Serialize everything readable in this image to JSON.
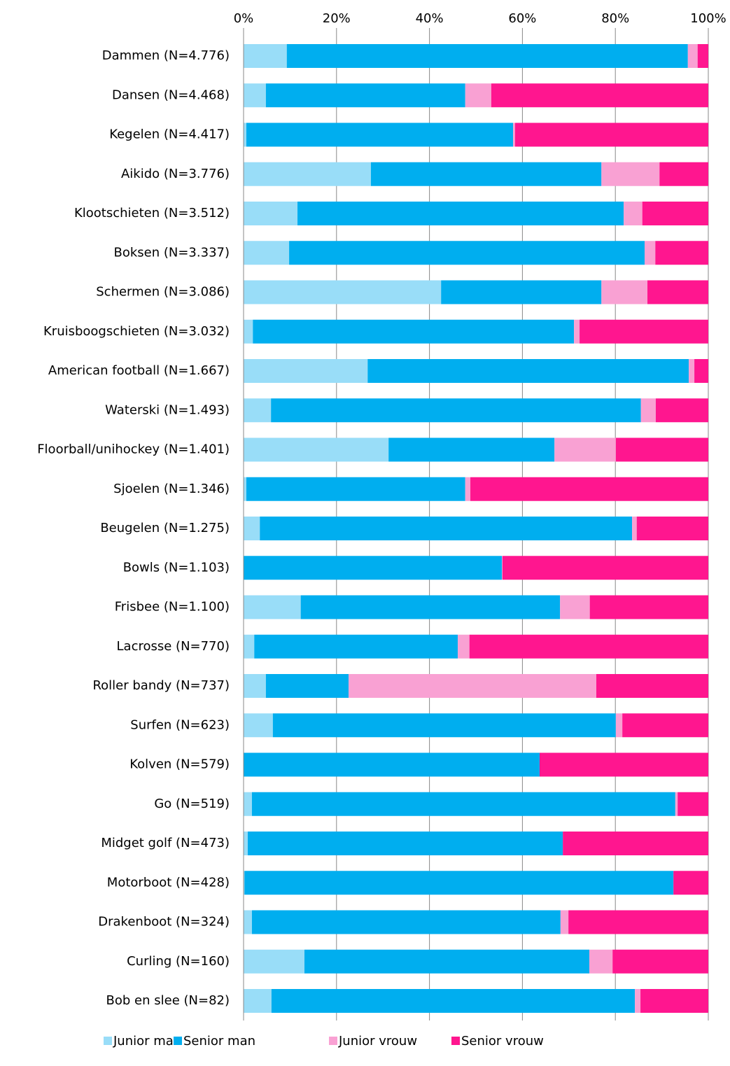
{
  "chart_data": {
    "type": "stacked-barh",
    "categories": [
      "Dammen (N=4.776)",
      "Dansen (N=4.468)",
      "Kegelen (N=4.417)",
      "Aikido (N=3.776)",
      "Klootschieten (N=3.512)",
      "Boksen (N=3.337)",
      "Schermen (N=3.086)",
      "Kruisboogschieten (N=3.032)",
      "American football (N=1.667)",
      "Waterski (N=1.493)",
      "Floorball/unihockey (N=1.401)",
      "Sjoelen (N=1.346)",
      "Beugelen (N=1.275)",
      "Bowls (N=1.103)",
      "Frisbee (N=1.100)",
      "Lacrosse (N=770)",
      "Roller bandy (N=737)",
      "Surfen (N=623)",
      "Kolven (N=579)",
      "Go (N=519)",
      "Midget golf (N=473)",
      "Motorboot (N=428)",
      "Drakenboot (N=324)",
      "Curling (N=160)",
      "Bob en slee (N=82)"
    ],
    "series": [
      {
        "name": "Junior man",
        "color": "#99ddf8",
        "values": [
          9.3,
          4.8,
          0.6,
          27.4,
          11.6,
          9.8,
          42.5,
          2.0,
          26.7,
          5.9,
          31.2,
          0.6,
          3.5,
          0,
          12.3,
          2.3,
          4.8,
          6.3,
          0,
          1.8,
          0.9,
          0.2,
          1.8,
          13.1,
          6.0
        ]
      },
      {
        "name": "Senior man",
        "color": "#00aeef",
        "values": [
          86.3,
          42.9,
          57.4,
          49.6,
          70.2,
          76.5,
          34.5,
          69.1,
          69.1,
          79.6,
          35.7,
          47.1,
          80.1,
          55.6,
          55.8,
          43.8,
          17.8,
          73.8,
          63.7,
          91.1,
          67.8,
          92.3,
          66.4,
          61.3,
          78.2
        ]
      },
      {
        "name": "Junior vrouw",
        "color": "#f9a1d3",
        "values": [
          2.1,
          5.6,
          0.4,
          12.5,
          4.0,
          2.3,
          9.9,
          1.2,
          1.2,
          3.2,
          13.2,
          1.1,
          1.0,
          0.1,
          6.4,
          2.5,
          53.3,
          1.4,
          0,
          0.5,
          0,
          0,
          1.7,
          5.0,
          1.2
        ]
      },
      {
        "name": "Senior vrouw",
        "color": "#ff168f",
        "values": [
          2.3,
          46.7,
          41.6,
          10.5,
          14.2,
          11.4,
          13.1,
          27.7,
          3.0,
          11.3,
          19.9,
          51.2,
          15.4,
          44.3,
          25.5,
          51.4,
          24.1,
          18.5,
          36.3,
          6.6,
          31.3,
          7.5,
          30.1,
          20.6,
          14.6
        ]
      }
    ],
    "xlim": [
      0,
      100
    ],
    "xticks": [
      {
        "value": 0,
        "label": "0%"
      },
      {
        "value": 20,
        "label": "20%"
      },
      {
        "value": 40,
        "label": "40%"
      },
      {
        "value": 60,
        "label": "60%"
      },
      {
        "value": 80,
        "label": "80%"
      },
      {
        "value": 100,
        "label": "100%"
      }
    ],
    "grid": true,
    "legend": "bottom"
  }
}
